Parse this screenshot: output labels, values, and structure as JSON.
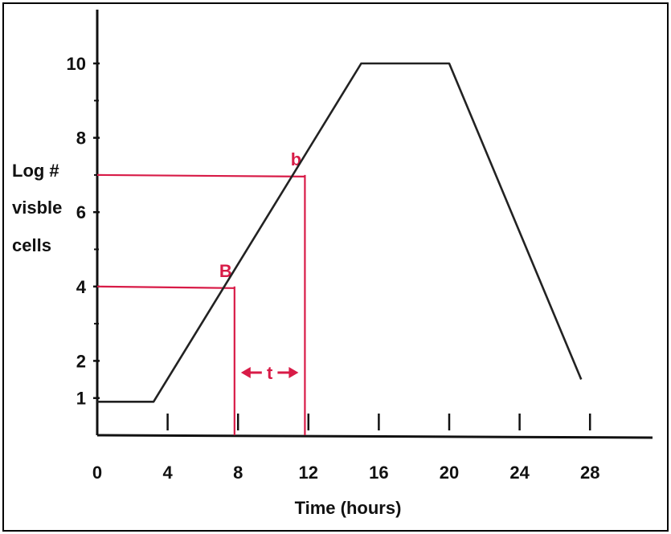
{
  "chart_data": {
    "type": "line",
    "title": "",
    "xlabel": "Time (hours)",
    "ylabel_lines": [
      "Log #",
      "visble",
      "cells"
    ],
    "xlim": [
      0,
      31
    ],
    "ylim": [
      0,
      11
    ],
    "x_ticks": [
      0,
      4,
      8,
      12,
      16,
      20,
      24,
      28
    ],
    "x_tick_labels": [
      "0",
      "4",
      "8",
      "12",
      "16",
      "20",
      "24",
      "28"
    ],
    "y_ticks_labeled": [
      1,
      2,
      4,
      6,
      8,
      10
    ],
    "y_tick_labels": [
      "1",
      "2",
      "4",
      "6",
      "8",
      "10"
    ],
    "y_ticks_minor": [
      3,
      5,
      7,
      9
    ],
    "series": [
      {
        "x": [
          0,
          3.2,
          15,
          20,
          27.5
        ],
        "y": [
          0.9,
          0.9,
          10,
          10,
          1.5
        ],
        "color": "#222222"
      }
    ],
    "annotations": {
      "color": "#d81b47",
      "point_B": {
        "label": "B",
        "x": 7.8,
        "y": 4
      },
      "point_b": {
        "label": "b",
        "x": 11.8,
        "y": 7
      },
      "interval_label": "t"
    }
  }
}
